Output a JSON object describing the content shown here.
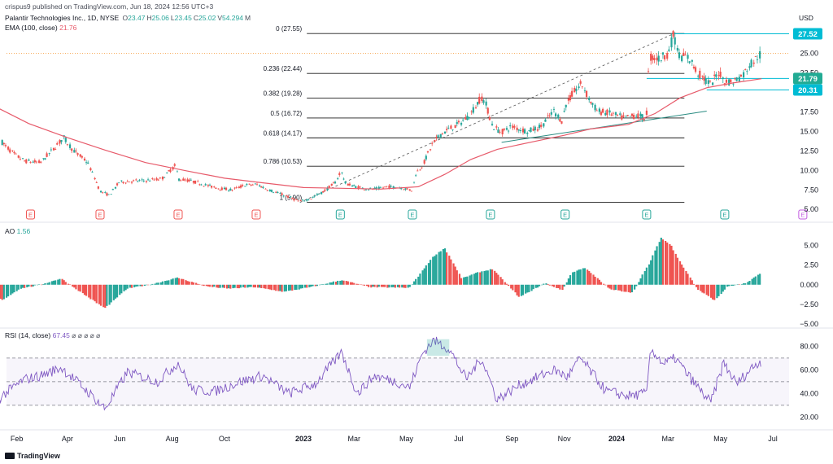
{
  "header": {
    "published": "crispus9 published on TradingView.com, Jun 18, 2024 12:56 UTC+3",
    "symbol": "Palantir Technologies Inc., 1D, NYSE",
    "ohlc": [
      {
        "k": "O",
        "v": "23.47"
      },
      {
        "k": "H",
        "v": "25.06"
      },
      {
        "k": "L",
        "v": "23.45"
      },
      {
        "k": "C",
        "v": "25.02"
      },
      {
        "k": "V",
        "v": "54.294"
      },
      {
        "k": "M",
        "v": ""
      }
    ],
    "ema_label": "EMA (100, close)",
    "ema_value": "21.76",
    "ao_label": "AO",
    "ao_value": "1.56",
    "rsi_label": "RSI (14, close)",
    "rsi_value": "67.45",
    "rsi_suffix": "⌀ ⌀ ⌀ ⌀ ⌀"
  },
  "colors": {
    "up": "#26a69a",
    "down": "#ef5350",
    "ema": "#e75a6a",
    "fib": "#1c1c1c",
    "trend": "#2a8c82",
    "rsi": "#7e57c2",
    "price_tag": "#22ab94",
    "level_tag": "#00bcd4",
    "earnings_red": "#ef5350",
    "earnings_green": "#26a69a",
    "earnings_purple": "#c25be0"
  },
  "price_axis": {
    "currency": "USD",
    "ticks": [
      "25.00",
      "22.50",
      "20.00",
      "17.50",
      "15.00",
      "12.50",
      "10.00",
      "7.50",
      "5.00"
    ],
    "tags": [
      {
        "label": "27.52",
        "kind": "level"
      },
      {
        "label": "21.79",
        "kind": "last"
      },
      {
        "label": "20.31",
        "kind": "level"
      }
    ]
  },
  "ao_axis": {
    "ticks": [
      "5.00",
      "2.50",
      "0.000",
      "−2.50",
      "−5.00"
    ]
  },
  "rsi_axis": {
    "ticks": [
      "80.00",
      "60.00",
      "40.00",
      "20.00"
    ]
  },
  "time_axis": {
    "labels": [
      {
        "t": "Feb",
        "bold": false
      },
      {
        "t": "Apr",
        "bold": false
      },
      {
        "t": "Jun",
        "bold": false
      },
      {
        "t": "Aug",
        "bold": false
      },
      {
        "t": "Oct",
        "bold": false
      },
      {
        "t": "2023",
        "bold": true
      },
      {
        "t": "Mar",
        "bold": false
      },
      {
        "t": "May",
        "bold": false
      },
      {
        "t": "Jul",
        "bold": false
      },
      {
        "t": "Sep",
        "bold": false
      },
      {
        "t": "Nov",
        "bold": false
      },
      {
        "t": "2024",
        "bold": true
      },
      {
        "t": "Mar",
        "bold": false
      },
      {
        "t": "May",
        "bold": false
      },
      {
        "t": "Jul",
        "bold": false
      }
    ]
  },
  "footer": {
    "logo": "TradingView"
  },
  "chart_data": {
    "type": "line",
    "title": "Palantir Technologies Inc., 1D, NYSE",
    "price_range": [
      4.5,
      28.3
    ],
    "fib_levels": [
      {
        "label": "0 (27.55)",
        "price": 27.55
      },
      {
        "label": "0.236 (22.44)",
        "price": 22.44
      },
      {
        "label": "0.382 (19.28)",
        "price": 19.28
      },
      {
        "label": "0.5 (16.72)",
        "price": 16.72
      },
      {
        "label": "0.618 (14.17)",
        "price": 14.17
      },
      {
        "label": "0.786 (10.53)",
        "price": 10.53
      },
      {
        "label": "1 (5.90)",
        "price": 5.9
      }
    ],
    "horizontal_levels": [
      27.52,
      21.79,
      20.31
    ],
    "current_price": 25.02,
    "earnings_markers": [
      "E",
      "E",
      "E",
      "E",
      "E",
      "E",
      "E",
      "E",
      "E",
      "E"
    ],
    "price_path": [
      [
        "2022-01-15",
        13.6
      ],
      [
        "2022-01-28",
        12.2
      ],
      [
        "2022-02-10",
        11.2
      ],
      [
        "2022-03-01",
        11.0
      ],
      [
        "2022-03-15",
        12.6
      ],
      [
        "2022-03-28",
        14.2
      ],
      [
        "2022-04-08",
        12.6
      ],
      [
        "2022-04-25",
        11.0
      ],
      [
        "2022-05-10",
        7.3
      ],
      [
        "2022-05-20",
        6.8
      ],
      [
        "2022-06-01",
        8.5
      ],
      [
        "2022-06-15",
        8.6
      ],
      [
        "2022-07-01",
        8.7
      ],
      [
        "2022-07-20",
        8.9
      ],
      [
        "2022-08-05",
        10.6
      ],
      [
        "2022-08-09",
        8.9
      ],
      [
        "2022-08-25",
        8.6
      ],
      [
        "2022-09-10",
        8.1
      ],
      [
        "2022-09-25",
        7.7
      ],
      [
        "2022-10-10",
        7.5
      ],
      [
        "2022-10-25",
        8.1
      ],
      [
        "2022-11-08",
        8.2
      ],
      [
        "2022-11-20",
        7.6
      ],
      [
        "2022-12-05",
        7.0
      ],
      [
        "2022-12-15",
        6.6
      ],
      [
        "2022-12-28",
        6.0
      ],
      [
        "2023-01-10",
        6.4
      ],
      [
        "2023-01-25",
        7.3
      ],
      [
        "2023-02-08",
        8.5
      ],
      [
        "2023-02-14",
        9.9
      ],
      [
        "2023-02-20",
        8.3
      ],
      [
        "2023-03-10",
        7.7
      ],
      [
        "2023-03-25",
        7.6
      ],
      [
        "2023-04-10",
        7.9
      ],
      [
        "2023-04-25",
        7.8
      ],
      [
        "2023-05-08",
        7.4
      ],
      [
        "2023-05-12",
        9.5
      ],
      [
        "2023-05-20",
        10.6
      ],
      [
        "2023-06-01",
        13.4
      ],
      [
        "2023-06-10",
        14.6
      ],
      [
        "2023-06-20",
        15.3
      ],
      [
        "2023-07-01",
        15.9
      ],
      [
        "2023-07-15",
        17.2
      ],
      [
        "2023-07-28",
        19.4
      ],
      [
        "2023-08-03",
        18.2
      ],
      [
        "2023-08-10",
        15.6
      ],
      [
        "2023-08-20",
        14.9
      ],
      [
        "2023-09-01",
        15.6
      ],
      [
        "2023-09-20",
        15.0
      ],
      [
        "2023-10-05",
        15.6
      ],
      [
        "2023-10-20",
        17.6
      ],
      [
        "2023-10-30",
        16.3
      ],
      [
        "2023-11-03",
        18.4
      ],
      [
        "2023-11-15",
        20.4
      ],
      [
        "2023-11-22",
        21.1
      ],
      [
        "2023-12-01",
        19.0
      ],
      [
        "2023-12-10",
        17.6
      ],
      [
        "2023-12-25",
        17.3
      ],
      [
        "2024-01-10",
        16.7
      ],
      [
        "2024-01-25",
        17.1
      ],
      [
        "2024-02-05",
        16.6
      ],
      [
        "2024-02-06",
        21.0
      ],
      [
        "2024-02-10",
        24.5
      ],
      [
        "2024-02-20",
        24.3
      ],
      [
        "2024-03-01",
        25.0
      ],
      [
        "2024-03-08",
        27.5
      ],
      [
        "2024-03-15",
        24.6
      ],
      [
        "2024-03-25",
        24.5
      ],
      [
        "2024-04-05",
        22.5
      ],
      [
        "2024-04-20",
        21.0
      ],
      [
        "2024-04-30",
        22.7
      ],
      [
        "2024-05-05",
        21.5
      ],
      [
        "2024-05-15",
        21.3
      ],
      [
        "2024-05-28",
        22.3
      ],
      [
        "2024-06-05",
        23.6
      ],
      [
        "2024-06-18",
        25.0
      ]
    ],
    "ema_path": [
      [
        "2022-01-01",
        18.5
      ],
      [
        "2022-02-15",
        16.0
      ],
      [
        "2022-04-01",
        14.2
      ],
      [
        "2022-05-15",
        12.6
      ],
      [
        "2022-07-01",
        11.0
      ],
      [
        "2022-08-15",
        10.0
      ],
      [
        "2022-10-01",
        9.0
      ],
      [
        "2022-11-15",
        8.4
      ],
      [
        "2023-01-01",
        7.8
      ],
      [
        "2023-02-15",
        7.7
      ],
      [
        "2023-04-01",
        7.6
      ],
      [
        "2023-05-15",
        7.9
      ],
      [
        "2023-06-15",
        9.5
      ],
      [
        "2023-07-15",
        11.4
      ],
      [
        "2023-08-15",
        12.7
      ],
      [
        "2023-10-01",
        13.8
      ],
      [
        "2023-11-01",
        14.5
      ],
      [
        "2023-12-01",
        15.3
      ],
      [
        "2024-01-15",
        15.9
      ],
      [
        "2024-02-15",
        17.3
      ],
      [
        "2024-03-15",
        19.3
      ],
      [
        "2024-04-15",
        20.6
      ],
      [
        "2024-05-15",
        21.2
      ],
      [
        "2024-06-18",
        21.76
      ]
    ],
    "ao_path": [
      [
        "2022-01-01",
        -0.5
      ],
      [
        "2022-01-15",
        -2.0
      ],
      [
        "2022-02-05",
        -0.5
      ],
      [
        "2022-03-01",
        0.0
      ],
      [
        "2022-03-25",
        0.8
      ],
      [
        "2022-04-15",
        -0.8
      ],
      [
        "2022-05-15",
        -3.0
      ],
      [
        "2022-06-10",
        -0.5
      ],
      [
        "2022-07-10",
        0.1
      ],
      [
        "2022-08-08",
        0.9
      ],
      [
        "2022-09-10",
        -0.2
      ],
      [
        "2022-10-05",
        -0.5
      ],
      [
        "2022-11-05",
        -0.3
      ],
      [
        "2022-12-10",
        -0.9
      ],
      [
        "2023-01-10",
        -0.3
      ],
      [
        "2023-02-15",
        0.6
      ],
      [
        "2023-03-20",
        -0.3
      ],
      [
        "2023-05-05",
        -0.4
      ],
      [
        "2023-06-01",
        3.5
      ],
      [
        "2023-06-15",
        4.7
      ],
      [
        "2023-07-05",
        0.8
      ],
      [
        "2023-07-25",
        1.6
      ],
      [
        "2023-08-10",
        2.0
      ],
      [
        "2023-09-10",
        -1.6
      ],
      [
        "2023-10-10",
        0.2
      ],
      [
        "2023-10-30",
        -0.7
      ],
      [
        "2023-11-10",
        1.5
      ],
      [
        "2023-11-25",
        2.2
      ],
      [
        "2023-12-25",
        -0.6
      ],
      [
        "2024-01-20",
        -1.0
      ],
      [
        "2024-02-10",
        3.0
      ],
      [
        "2024-02-22",
        6.0
      ],
      [
        "2024-03-05",
        5.0
      ],
      [
        "2024-03-15",
        3.0
      ],
      [
        "2024-04-05",
        -0.6
      ],
      [
        "2024-04-25",
        -2.0
      ],
      [
        "2024-05-10",
        -0.2
      ],
      [
        "2024-06-01",
        0.2
      ],
      [
        "2024-06-18",
        1.56
      ]
    ],
    "rsi_path": [
      [
        "2022-01-01",
        28
      ],
      [
        "2022-01-15",
        38
      ],
      [
        "2022-02-10",
        52
      ],
      [
        "2022-03-01",
        55
      ],
      [
        "2022-03-25",
        62
      ],
      [
        "2022-04-20",
        45
      ],
      [
        "2022-05-15",
        27
      ],
      [
        "2022-06-10",
        58
      ],
      [
        "2022-07-15",
        50
      ],
      [
        "2022-08-08",
        66
      ],
      [
        "2022-08-25",
        43
      ],
      [
        "2022-09-20",
        42
      ],
      [
        "2022-10-20",
        50
      ],
      [
        "2022-11-15",
        55
      ],
      [
        "2022-12-15",
        40
      ],
      [
        "2023-01-15",
        48
      ],
      [
        "2023-02-15",
        75
      ],
      [
        "2023-03-05",
        40
      ],
      [
        "2023-03-25",
        55
      ],
      [
        "2023-04-20",
        50
      ],
      [
        "2023-05-05",
        45
      ],
      [
        "2023-05-20",
        74
      ],
      [
        "2023-06-02",
        85
      ],
      [
        "2023-06-20",
        78
      ],
      [
        "2023-07-10",
        52
      ],
      [
        "2023-07-28",
        70
      ],
      [
        "2023-08-15",
        35
      ],
      [
        "2023-09-10",
        47
      ],
      [
        "2023-10-20",
        60
      ],
      [
        "2023-11-05",
        54
      ],
      [
        "2023-11-20",
        70
      ],
      [
        "2023-12-20",
        42
      ],
      [
        "2024-01-15",
        38
      ],
      [
        "2024-02-05",
        40
      ],
      [
        "2024-02-10",
        78
      ],
      [
        "2024-02-25",
        65
      ],
      [
        "2024-03-10",
        70
      ],
      [
        "2024-03-25",
        55
      ],
      [
        "2024-04-20",
        32
      ],
      [
        "2024-05-05",
        66
      ],
      [
        "2024-05-20",
        48
      ],
      [
        "2024-06-10",
        64
      ],
      [
        "2024-06-18",
        67.45
      ]
    ],
    "rsi_bands": [
      70,
      50,
      30
    ]
  }
}
